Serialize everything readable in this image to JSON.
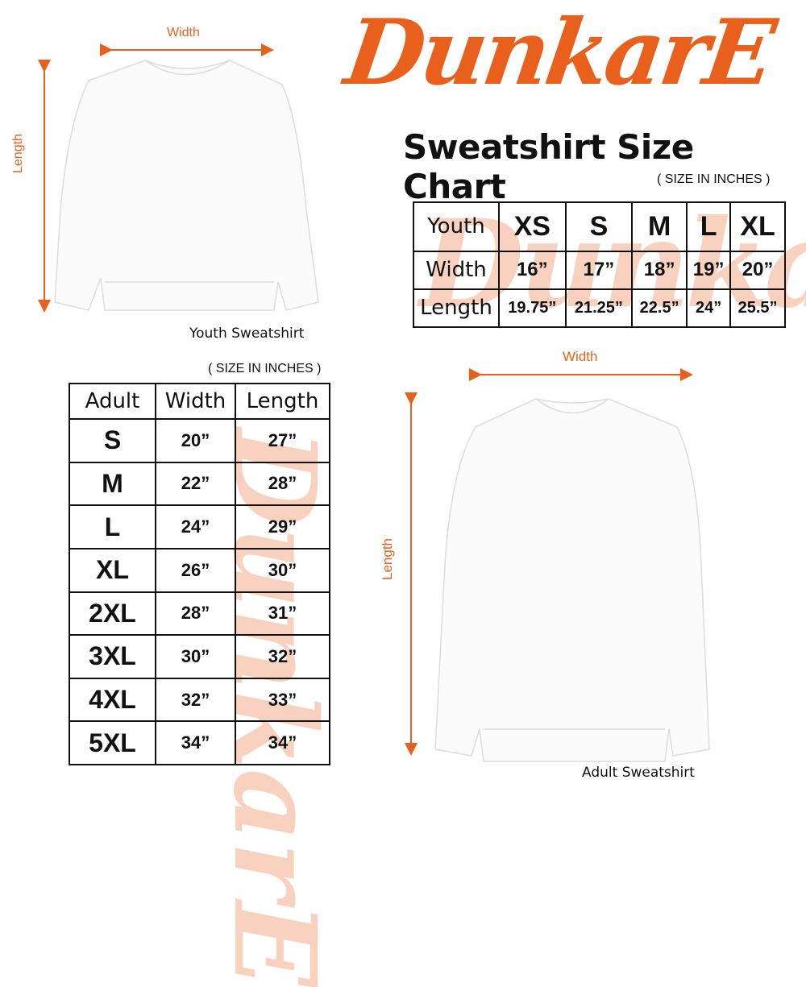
{
  "brand": {
    "logo_text": "DunkarE",
    "accent": "#e8601c"
  },
  "title": "Sweatshirt Size Chart",
  "youth": {
    "unit_note": "( SIZE IN INCHES )",
    "caption": "Youth Sweatshirt",
    "width_label": "Width",
    "length_label": "Length",
    "header": [
      "Youth",
      "XS",
      "S",
      "M",
      "L",
      "XL"
    ],
    "rows": [
      [
        "Width",
        "16”",
        "17”",
        "18”",
        "19”",
        "20”"
      ],
      [
        "Length",
        "19.75”",
        "21.25”",
        "22.5”",
        "24”",
        "25.5”"
      ]
    ]
  },
  "adult": {
    "unit_note": "( SIZE IN INCHES )",
    "caption": "Adult Sweatshirt",
    "width_label": "Width",
    "length_label": "Length",
    "header": [
      "Adult",
      "Width",
      "Length"
    ],
    "rows": [
      [
        "S",
        "20”",
        "27”"
      ],
      [
        "M",
        "22”",
        "28”"
      ],
      [
        "L",
        "24”",
        "29”"
      ],
      [
        "XL",
        "26”",
        "30”"
      ],
      [
        "2XL",
        "28”",
        "31”"
      ],
      [
        "3XL",
        "30”",
        "32”"
      ],
      [
        "4XL",
        "32”",
        "33”"
      ],
      [
        "5XL",
        "34”",
        "34”"
      ]
    ]
  }
}
